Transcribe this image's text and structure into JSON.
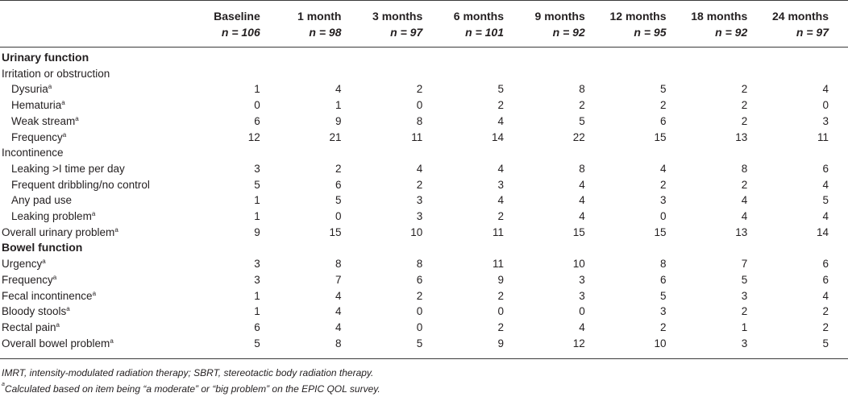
{
  "columns": [
    {
      "label": "Baseline",
      "n": "n = 106"
    },
    {
      "label": "1 month",
      "n": "n = 98"
    },
    {
      "label": "3 months",
      "n": "n = 97"
    },
    {
      "label": "6 months",
      "n": "n = 101"
    },
    {
      "label": "9 months",
      "n": "n = 92"
    },
    {
      "label": "12 months",
      "n": "n = 95"
    },
    {
      "label": "18 months",
      "n": "n = 92"
    },
    {
      "label": "24 months",
      "n": "n = 97"
    }
  ],
  "rows": [
    {
      "kind": "section",
      "label": "Urinary function"
    },
    {
      "kind": "sub",
      "label": "Irritation or obstruction"
    },
    {
      "kind": "item",
      "indent": true,
      "label": "Dysuria",
      "sup": "a",
      "values": [
        "1",
        "4",
        "2",
        "5",
        "8",
        "5",
        "2",
        "4"
      ]
    },
    {
      "kind": "item",
      "indent": true,
      "label": "Hematuria",
      "sup": "a",
      "values": [
        "0",
        "1",
        "0",
        "2",
        "2",
        "2",
        "2",
        "0"
      ]
    },
    {
      "kind": "item",
      "indent": true,
      "label": "Weak stream",
      "sup": "a",
      "values": [
        "6",
        "9",
        "8",
        "4",
        "5",
        "6",
        "2",
        "3"
      ]
    },
    {
      "kind": "item",
      "indent": true,
      "label": "Frequency",
      "sup": "a",
      "values": [
        "12",
        "21",
        "11",
        "14",
        "22",
        "15",
        "13",
        "11"
      ]
    },
    {
      "kind": "sub",
      "label": "Incontinence"
    },
    {
      "kind": "item",
      "indent": true,
      "label": "Leaking >I time per day",
      "sup": "",
      "values": [
        "3",
        "2",
        "4",
        "4",
        "8",
        "4",
        "8",
        "6"
      ]
    },
    {
      "kind": "item",
      "indent": true,
      "label": "Frequent dribbling/no control",
      "sup": "",
      "values": [
        "5",
        "6",
        "2",
        "3",
        "4",
        "2",
        "2",
        "4"
      ]
    },
    {
      "kind": "item",
      "indent": true,
      "label": "Any pad use",
      "sup": "",
      "values": [
        "1",
        "5",
        "3",
        "4",
        "4",
        "3",
        "4",
        "5"
      ]
    },
    {
      "kind": "item",
      "indent": true,
      "label": "Leaking problem",
      "sup": "a",
      "values": [
        "1",
        "0",
        "3",
        "2",
        "4",
        "0",
        "4",
        "4"
      ]
    },
    {
      "kind": "item",
      "indent": false,
      "label": "Overall urinary problem",
      "sup": "a",
      "values": [
        "9",
        "15",
        "10",
        "11",
        "15",
        "15",
        "13",
        "14"
      ]
    },
    {
      "kind": "section",
      "label": "Bowel function"
    },
    {
      "kind": "item",
      "indent": false,
      "label": "Urgency",
      "sup": "a",
      "values": [
        "3",
        "8",
        "8",
        "11",
        "10",
        "8",
        "7",
        "6"
      ]
    },
    {
      "kind": "item",
      "indent": false,
      "label": "Frequency",
      "sup": "a",
      "values": [
        "3",
        "7",
        "6",
        "9",
        "3",
        "6",
        "5",
        "6"
      ]
    },
    {
      "kind": "item",
      "indent": false,
      "label": "Fecal incontinence",
      "sup": "a",
      "values": [
        "1",
        "4",
        "2",
        "2",
        "3",
        "5",
        "3",
        "4"
      ]
    },
    {
      "kind": "item",
      "indent": false,
      "label": "Bloody stools",
      "sup": "a",
      "values": [
        "1",
        "4",
        "0",
        "0",
        "0",
        "3",
        "2",
        "2"
      ]
    },
    {
      "kind": "item",
      "indent": false,
      "label": "Rectal pain",
      "sup": "a",
      "values": [
        "6",
        "4",
        "0",
        "2",
        "4",
        "2",
        "1",
        "2"
      ]
    },
    {
      "kind": "item",
      "indent": false,
      "label": "Overall bowel problem",
      "sup": "a",
      "values": [
        "5",
        "8",
        "5",
        "9",
        "12",
        "10",
        "3",
        "5"
      ]
    }
  ],
  "footnotes": {
    "abbrev": "IMRT, intensity-modulated radiation therapy; SBRT, stereotactic body radiation therapy.",
    "a_mark": "a",
    "a_text": "Calculated based on item being “a moderate” or “big problem” on the EPIC QOL survey."
  }
}
